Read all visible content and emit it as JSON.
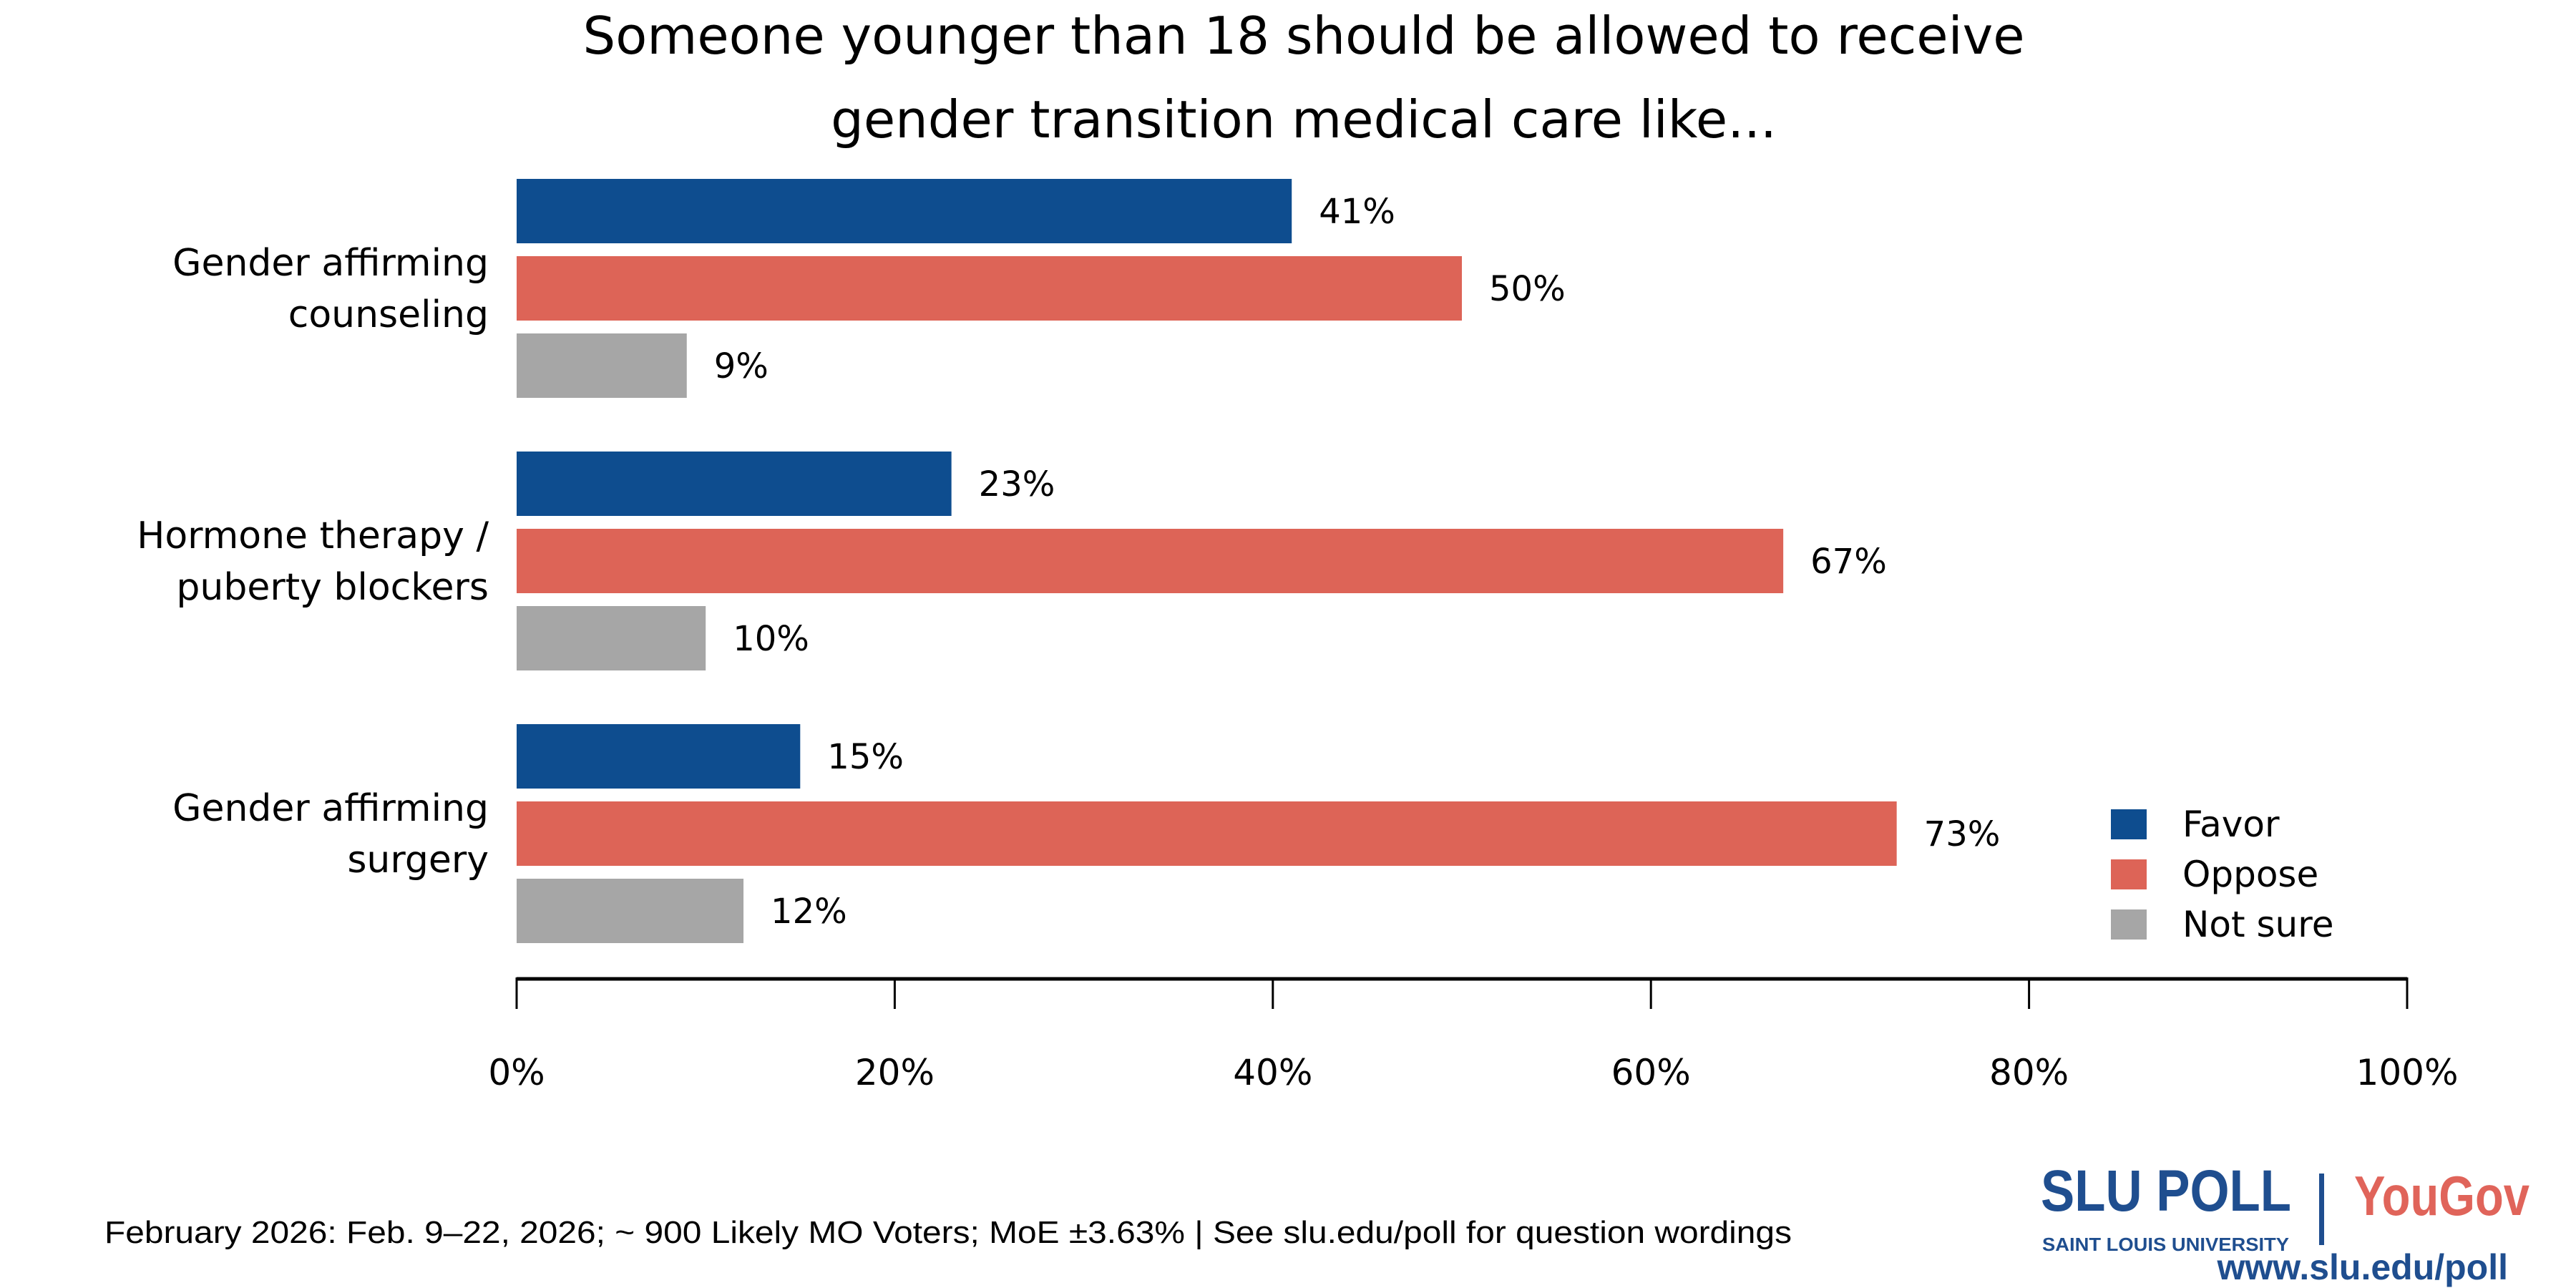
{
  "chart_data": {
    "type": "bar",
    "orientation": "horizontal",
    "title_lines": [
      "Someone younger than 18 should be allowed to receive",
      "gender transition medical care like..."
    ],
    "categories": [
      [
        "Gender affirming",
        "counseling"
      ],
      [
        "Hormone therapy /",
        "puberty blockers"
      ],
      [
        "Gender affirming",
        "surgery"
      ]
    ],
    "series": [
      {
        "name": "Favor",
        "color": "#0e4d8f",
        "values": [
          41,
          23,
          15
        ],
        "labels": [
          "41%",
          "23%",
          "15%"
        ]
      },
      {
        "name": "Oppose",
        "color": "#dd6457",
        "values": [
          50,
          67,
          73
        ],
        "labels": [
          "50%",
          "67%",
          "73%"
        ]
      },
      {
        "name": "Not sure",
        "color": "#a6a6a6",
        "values": [
          9,
          10,
          12
        ],
        "labels": [
          "9%",
          "10%",
          "12%"
        ]
      }
    ],
    "xlim": [
      0,
      100
    ],
    "x_ticks": [
      "0%",
      "20%",
      "40%",
      "60%",
      "80%",
      "100%"
    ],
    "grid": false,
    "legend_placement": "bottom-right"
  },
  "footer": {
    "note": "February 2026: Feb. 9–22, 2026; ~ 900 Likely MO Voters; MoE ±3.63%  |  See slu.edu/poll for question wordings",
    "logo_slu": "SLU POLL",
    "logo_slu_sub": "SAINT LOUIS UNIVERSITY",
    "logo_yougov": "YouGov",
    "url": "www.slu.edu/poll"
  }
}
